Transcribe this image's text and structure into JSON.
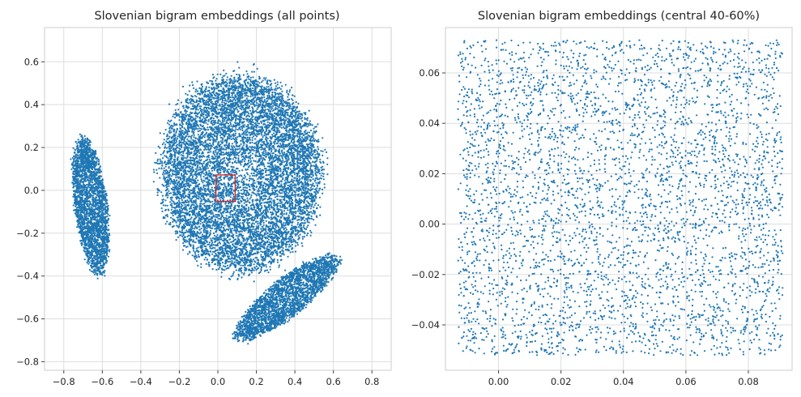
{
  "chart_data": [
    {
      "type": "scatter",
      "title": "Slovenian bigram embeddings (all points)",
      "xlabel": "",
      "ylabel": "",
      "xlim": [
        -0.9,
        0.9
      ],
      "ylim": [
        -0.84,
        0.76
      ],
      "xticks": [
        -0.8,
        -0.6,
        -0.4,
        -0.2,
        0.0,
        0.2,
        0.4,
        0.6,
        0.8
      ],
      "xtick_labels": [
        "−0.8",
        "−0.6",
        "−0.4",
        "−0.2",
        "0.0",
        "0.2",
        "0.4",
        "0.6",
        "0.8"
      ],
      "yticks": [
        -0.8,
        -0.6,
        -0.4,
        -0.2,
        0.0,
        0.2,
        0.4,
        0.6
      ],
      "ytick_labels": [
        "−0.8",
        "−0.6",
        "−0.4",
        "−0.2",
        "0.0",
        "0.2",
        "0.4",
        "0.6"
      ],
      "grid": true,
      "point_color": "#1f77b4",
      "clusters": [
        {
          "center": [
            -0.66,
            -0.07
          ],
          "radius": [
            0.085,
            0.32
          ],
          "tilt_deg": 8
        },
        {
          "center": [
            0.12,
            0.08
          ],
          "radius": [
            0.42,
            0.46
          ],
          "tilt_deg": 0
        },
        {
          "center": [
            0.36,
            -0.5
          ],
          "radius": [
            0.32,
            0.09
          ],
          "tilt_deg": 35
        }
      ],
      "highlight_box": {
        "x": [
          -0.01,
          0.09
        ],
        "y": [
          -0.052,
          0.072
        ],
        "color": "#d62728"
      }
    },
    {
      "type": "scatter",
      "title": "Slovenian bigram embeddings (central 40-60%)",
      "xlabel": "",
      "ylabel": "",
      "xlim": [
        -0.017,
        0.094
      ],
      "ylim": [
        -0.058,
        0.078
      ],
      "xticks": [
        0.0,
        0.02,
        0.04,
        0.06,
        0.08
      ],
      "xtick_labels": [
        "0.00",
        "0.02",
        "0.04",
        "0.06",
        "0.08"
      ],
      "yticks": [
        -0.04,
        -0.02,
        0.0,
        0.02,
        0.04,
        0.06
      ],
      "ytick_labels": [
        "−0.04",
        "−0.02",
        "0.00",
        "0.02",
        "0.04",
        "0.06"
      ],
      "grid": true,
      "point_color": "#1f77b4",
      "points_range": {
        "x": [
          -0.013,
          0.091
        ],
        "y": [
          -0.052,
          0.073
        ]
      }
    }
  ]
}
